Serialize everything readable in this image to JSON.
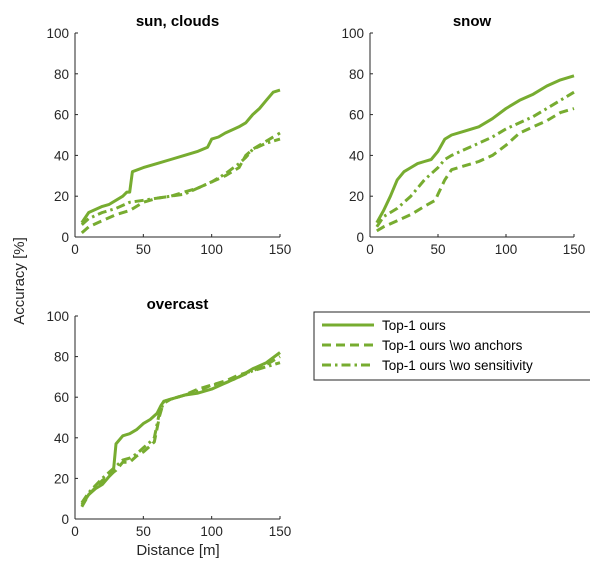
{
  "figure": {
    "ylabel": "Accuracy [%]",
    "xlabel": "Distance [m]"
  },
  "colors": {
    "series": "#77ac30",
    "axis": "#262626"
  },
  "legend": {
    "placement": "right of bottom-left panel",
    "entries": [
      {
        "label": "Top-1 ours",
        "style": "solid"
      },
      {
        "label": "Top-1 ours \\wo anchors",
        "style": "dashed"
      },
      {
        "label": "Top-1 ours \\wo sensitivity",
        "style": "dash-dot"
      }
    ]
  },
  "chart_data": [
    {
      "type": "line",
      "title": "sun, clouds",
      "xlim": [
        0,
        150
      ],
      "ylim": [
        0,
        100
      ],
      "xticks": [
        0,
        50,
        100,
        150
      ],
      "yticks": [
        0,
        20,
        40,
        60,
        80,
        100
      ],
      "series": [
        {
          "name": "Top-1 ours",
          "style": "solid",
          "x": [
            5,
            10,
            20,
            25,
            35,
            38,
            40,
            42,
            50,
            60,
            70,
            80,
            90,
            97,
            100,
            105,
            110,
            120,
            125,
            130,
            135,
            140,
            145,
            150
          ],
          "y": [
            7,
            12,
            15,
            16,
            20,
            22,
            22,
            32,
            34,
            36,
            38,
            40,
            42,
            44,
            48,
            49,
            51,
            54,
            56,
            60,
            63,
            67,
            71,
            72
          ]
        },
        {
          "name": "Top-1 ours \\wo anchors",
          "style": "dashed",
          "x": [
            5,
            10,
            20,
            30,
            40,
            50,
            60,
            70,
            80,
            90,
            100,
            110,
            120,
            125,
            130,
            140,
            150
          ],
          "y": [
            2,
            5,
            8,
            11,
            13,
            17,
            19,
            20,
            22,
            24,
            27,
            30,
            34,
            40,
            43,
            47,
            51
          ]
        },
        {
          "name": "Top-1 ours \\wo sensitivity",
          "style": "dash-dot",
          "x": [
            5,
            10,
            20,
            30,
            40,
            50,
            60,
            70,
            80,
            90,
            100,
            110,
            120,
            125,
            130,
            140,
            150
          ],
          "y": [
            6,
            9,
            12,
            14,
            17,
            18,
            19,
            20,
            21,
            24,
            27,
            31,
            36,
            39,
            43,
            46,
            48
          ]
        }
      ]
    },
    {
      "type": "line",
      "title": "snow",
      "xlim": [
        0,
        150
      ],
      "ylim": [
        0,
        100
      ],
      "xticks": [
        0,
        50,
        100,
        150
      ],
      "yticks": [
        0,
        20,
        40,
        60,
        80,
        100
      ],
      "series": [
        {
          "name": "Top-1 ours",
          "style": "solid",
          "x": [
            5,
            10,
            15,
            20,
            25,
            30,
            35,
            40,
            45,
            50,
            55,
            60,
            70,
            80,
            90,
            100,
            110,
            120,
            130,
            140,
            150
          ],
          "y": [
            7,
            13,
            20,
            28,
            32,
            34,
            36,
            37,
            38,
            42,
            48,
            50,
            52,
            54,
            58,
            63,
            67,
            70,
            74,
            77,
            79
          ]
        },
        {
          "name": "Top-1 ours \\wo anchors",
          "style": "dashed",
          "x": [
            5,
            10,
            20,
            30,
            40,
            48,
            50,
            55,
            60,
            70,
            80,
            90,
            100,
            110,
            120,
            130,
            140,
            150
          ],
          "y": [
            3,
            5,
            8,
            11,
            15,
            18,
            21,
            28,
            33,
            35,
            37,
            40,
            45,
            51,
            54,
            57,
            61,
            63
          ]
        },
        {
          "name": "Top-1 ours \\wo sensitivity",
          "style": "dash-dot",
          "x": [
            5,
            10,
            20,
            30,
            40,
            50,
            55,
            60,
            70,
            80,
            90,
            100,
            110,
            120,
            130,
            140,
            150
          ],
          "y": [
            5,
            10,
            14,
            20,
            28,
            34,
            38,
            40,
            43,
            46,
            49,
            53,
            56,
            59,
            63,
            67,
            71
          ]
        }
      ]
    },
    {
      "type": "line",
      "title": "overcast",
      "xlim": [
        0,
        150
      ],
      "ylim": [
        0,
        100
      ],
      "xticks": [
        0,
        50,
        100,
        150
      ],
      "yticks": [
        0,
        20,
        40,
        60,
        80,
        100
      ],
      "series": [
        {
          "name": "Top-1 ours",
          "style": "solid",
          "x": [
            5,
            10,
            15,
            20,
            25,
            28,
            30,
            35,
            40,
            45,
            50,
            55,
            60,
            63,
            65,
            70,
            80,
            90,
            100,
            110,
            120,
            130,
            140,
            150
          ],
          "y": [
            7,
            12,
            15,
            17,
            21,
            23,
            37,
            41,
            42,
            44,
            47,
            49,
            52,
            56,
            58,
            59,
            61,
            62,
            64,
            67,
            70,
            74,
            77,
            82
          ]
        },
        {
          "name": "Top-1 ours \\wo anchors",
          "style": "dashed",
          "x": [
            5,
            10,
            20,
            30,
            35,
            40,
            45,
            50,
            55,
            58,
            62,
            65,
            70,
            80,
            90,
            100,
            110,
            120,
            130,
            140,
            150
          ],
          "y": [
            6,
            12,
            19,
            24,
            28,
            28,
            31,
            33,
            36,
            38,
            51,
            58,
            59,
            61,
            64,
            66,
            68,
            71,
            73,
            76,
            80
          ]
        },
        {
          "name": "Top-1 ours \\wo sensitivity",
          "style": "dash-dot",
          "x": [
            5,
            10,
            20,
            30,
            35,
            40,
            45,
            50,
            55,
            58,
            62,
            65,
            70,
            80,
            90,
            100,
            110,
            120,
            130,
            140,
            150
          ],
          "y": [
            8,
            13,
            20,
            26,
            29,
            30,
            32,
            35,
            38,
            40,
            53,
            57,
            59,
            61,
            63,
            66,
            67,
            70,
            73,
            75,
            77
          ]
        }
      ]
    }
  ]
}
